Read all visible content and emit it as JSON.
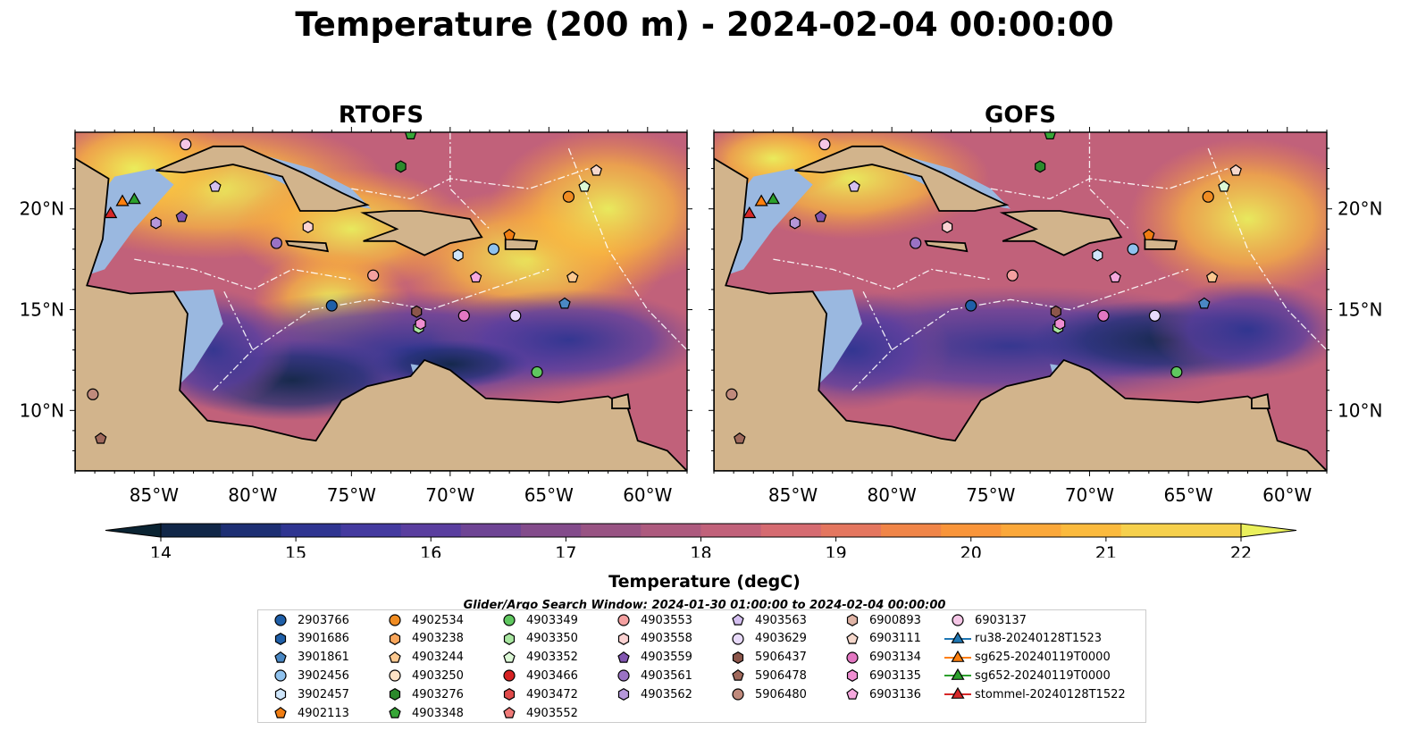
{
  "title": "Temperature (200 m) - 2024-02-04 00:00:00",
  "panels": [
    {
      "name": "RTOFS"
    },
    {
      "name": "GOFS"
    }
  ],
  "axes": {
    "lon_ticks": [
      "85°W",
      "80°W",
      "75°W",
      "70°W",
      "65°W",
      "60°W"
    ],
    "lat_ticks": [
      "20°N",
      "15°N",
      "10°N"
    ]
  },
  "colorbar": {
    "label": "Temperature (degC)",
    "ticks": [
      "14",
      "15",
      "16",
      "17",
      "18",
      "19",
      "20",
      "21",
      "22"
    ],
    "range": [
      14,
      22
    ],
    "colors": [
      "#0b2433",
      "#112748",
      "#1d2f73",
      "#2f3591",
      "#443a9f",
      "#5a3e9f",
      "#6e4494",
      "#834b8b",
      "#985383",
      "#ad5a7e",
      "#c1617a",
      "#d56b71",
      "#e4765f",
      "#f08548",
      "#f9953a",
      "#fba83a",
      "#fbba3d",
      "#f6d04c",
      "#eaf05c"
    ]
  },
  "colors": {
    "land": "#d2b48c",
    "shelf": "#9ab8e0",
    "deep": "#0b2433"
  },
  "search_window": "Glider/Argo Search Window: 2024-01-30 01:00:00 to 2024-02-04 00:00:00",
  "legend": {
    "columns": [
      [
        {
          "label": "2903766",
          "marker": "circle",
          "color": "#1f5fa8"
        },
        {
          "label": "3901686",
          "marker": "hexagon",
          "color": "#1f5fa8"
        },
        {
          "label": "3901861",
          "marker": "pentagon",
          "color": "#4a88c4"
        },
        {
          "label": "3902456",
          "marker": "circle",
          "color": "#8fc2ee"
        },
        {
          "label": "3902457",
          "marker": "hexagon",
          "color": "#cfe6fb"
        },
        {
          "label": "4902113",
          "marker": "pentagon",
          "color": "#f07d12"
        }
      ],
      [
        {
          "label": "4902534",
          "marker": "circle",
          "color": "#f08c22"
        },
        {
          "label": "4903238",
          "marker": "hexagon",
          "color": "#f8a65c"
        },
        {
          "label": "4903244",
          "marker": "pentagon",
          "color": "#fbc890"
        },
        {
          "label": "4903250",
          "marker": "circle",
          "color": "#fde2c6"
        },
        {
          "label": "4903276",
          "marker": "hexagon",
          "color": "#2c8a2c"
        },
        {
          "label": "4903348",
          "marker": "pentagon",
          "color": "#37a637"
        }
      ],
      [
        {
          "label": "4903349",
          "marker": "circle",
          "color": "#5fc75f"
        },
        {
          "label": "4903350",
          "marker": "hexagon",
          "color": "#a8e6a0"
        },
        {
          "label": "4903352",
          "marker": "pentagon",
          "color": "#dcf8d6"
        },
        {
          "label": "4903466",
          "marker": "circle",
          "color": "#d62223"
        },
        {
          "label": "4903472",
          "marker": "hexagon",
          "color": "#e04a4a"
        },
        {
          "label": "4903552",
          "marker": "pentagon",
          "color": "#f07a78"
        }
      ],
      [
        {
          "label": "4903553",
          "marker": "circle",
          "color": "#f4a0a0"
        },
        {
          "label": "4903558",
          "marker": "hexagon",
          "color": "#fbd2d2"
        },
        {
          "label": "4903559",
          "marker": "pentagon",
          "color": "#8155b0"
        },
        {
          "label": "4903561",
          "marker": "circle",
          "color": "#9a72c4"
        },
        {
          "label": "4903562",
          "marker": "hexagon",
          "color": "#b597da"
        },
        {
          "label": ""
        }
      ],
      [
        {
          "label": "4903563",
          "marker": "pentagon",
          "color": "#d4bff0"
        },
        {
          "label": "4903629",
          "marker": "circle",
          "color": "#e8dafa"
        },
        {
          "label": "5906437",
          "marker": "hexagon",
          "color": "#8c564b"
        },
        {
          "label": "5906478",
          "marker": "pentagon",
          "color": "#a0695c"
        },
        {
          "label": "5906480",
          "marker": "circle",
          "color": "#c08a7c"
        },
        {
          "label": ""
        }
      ],
      [
        {
          "label": "6900893",
          "marker": "hexagon",
          "color": "#e0b4a6"
        },
        {
          "label": "6903111",
          "marker": "pentagon",
          "color": "#f6d8cc"
        },
        {
          "label": "6903134",
          "marker": "circle",
          "color": "#e377c2"
        },
        {
          "label": "6903135",
          "marker": "hexagon",
          "color": "#f08ed2"
        },
        {
          "label": "6903136",
          "marker": "pentagon",
          "color": "#f6a8de"
        },
        {
          "label": ""
        }
      ],
      [
        {
          "label": "6903137",
          "marker": "circle",
          "color": "#f5c6e6"
        },
        {
          "label": "ru38-20240128T1523",
          "marker": "triangle-line",
          "color": "#1f77b4"
        },
        {
          "label": "sg625-20240119T0000",
          "marker": "triangle-line",
          "color": "#ff7f0e"
        },
        {
          "label": "sg652-20240119T0000",
          "marker": "triangle-line",
          "color": "#2ca02c"
        },
        {
          "label": "stommel-20240128T1522",
          "marker": "triangle-line",
          "color": "#d62728"
        },
        {
          "label": ""
        }
      ]
    ]
  },
  "map_markers": [
    {
      "lon": -76.0,
      "lat": 15.2,
      "marker": "circle",
      "color": "#1f5fa8"
    },
    {
      "lon": -64.2,
      "lat": 15.3,
      "marker": "pentagon",
      "color": "#4a88c4"
    },
    {
      "lon": -67.8,
      "lat": 18.0,
      "marker": "circle",
      "color": "#8fc2ee"
    },
    {
      "lon": -69.6,
      "lat": 17.7,
      "marker": "hexagon",
      "color": "#cfe6fb"
    },
    {
      "lon": -67.0,
      "lat": 18.7,
      "marker": "pentagon",
      "color": "#f07d12"
    },
    {
      "lon": -64.0,
      "lat": 20.6,
      "marker": "circle",
      "color": "#f08c22"
    },
    {
      "lon": -63.8,
      "lat": 16.6,
      "marker": "pentagon",
      "color": "#fbc890"
    },
    {
      "lon": -72.5,
      "lat": 22.1,
      "marker": "hexagon",
      "color": "#2c8a2c"
    },
    {
      "lon": -72.0,
      "lat": 23.7,
      "marker": "pentagon",
      "color": "#37a637"
    },
    {
      "lon": -65.6,
      "lat": 11.9,
      "marker": "circle",
      "color": "#5fc75f"
    },
    {
      "lon": -71.6,
      "lat": 14.1,
      "marker": "hexagon",
      "color": "#a8e6a0"
    },
    {
      "lon": -63.2,
      "lat": 21.1,
      "marker": "pentagon",
      "color": "#dcf8d6"
    },
    {
      "lon": -73.9,
      "lat": 16.7,
      "marker": "circle",
      "color": "#f4a0a0"
    },
    {
      "lon": -77.2,
      "lat": 19.1,
      "marker": "hexagon",
      "color": "#fbd2d2"
    },
    {
      "lon": -83.6,
      "lat": 19.6,
      "marker": "pentagon",
      "color": "#8155b0"
    },
    {
      "lon": -78.8,
      "lat": 18.3,
      "marker": "circle",
      "color": "#9a72c4"
    },
    {
      "lon": -84.9,
      "lat": 19.3,
      "marker": "hexagon",
      "color": "#b597da"
    },
    {
      "lon": -81.9,
      "lat": 21.1,
      "marker": "pentagon",
      "color": "#d4bff0"
    },
    {
      "lon": -66.7,
      "lat": 14.7,
      "marker": "circle",
      "color": "#e8dafa"
    },
    {
      "lon": -71.7,
      "lat": 14.9,
      "marker": "hexagon",
      "color": "#8c564b"
    },
    {
      "lon": -87.7,
      "lat": 8.6,
      "marker": "pentagon",
      "color": "#a0695c"
    },
    {
      "lon": -88.1,
      "lat": 10.8,
      "marker": "circle",
      "color": "#c08a7c"
    },
    {
      "lon": -62.6,
      "lat": 21.9,
      "marker": "pentagon",
      "color": "#f6d8cc"
    },
    {
      "lon": -69.3,
      "lat": 14.7,
      "marker": "circle",
      "color": "#e377c2"
    },
    {
      "lon": -71.5,
      "lat": 14.3,
      "marker": "hexagon",
      "color": "#f08ed2"
    },
    {
      "lon": -68.7,
      "lat": 16.6,
      "marker": "pentagon",
      "color": "#f6a8de"
    },
    {
      "lon": -83.4,
      "lat": 23.2,
      "marker": "circle",
      "color": "#f5c6e6"
    },
    {
      "lon": -86.6,
      "lat": 20.4,
      "marker": "triangle",
      "color": "#ff7f0e"
    },
    {
      "lon": -86.0,
      "lat": 20.5,
      "marker": "triangle",
      "color": "#2ca02c"
    },
    {
      "lon": -87.2,
      "lat": 19.8,
      "marker": "triangle",
      "color": "#d62728"
    }
  ]
}
